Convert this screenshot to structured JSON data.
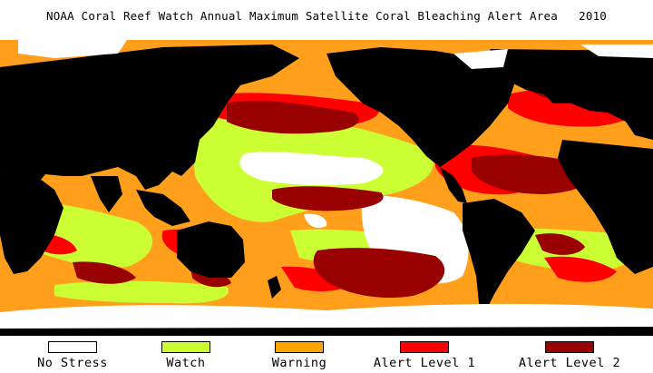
{
  "title": "NOAA Coral Reef Watch Annual Maximum Satellite Coral Bleaching Alert Area   2010",
  "legend": [
    {
      "label": "No Stress",
      "color": "#ffffff"
    },
    {
      "label": "Watch",
      "color": "#ccff33"
    },
    {
      "label": "Warning",
      "color": "#ffa500"
    },
    {
      "label": "Alert Level 1",
      "color": "#ff0000"
    },
    {
      "label": "Alert Level 2",
      "color": "#990000"
    }
  ],
  "colors": {
    "land": "#000000",
    "ice": "#ffffff",
    "ocean_base": "#ff9f1c"
  }
}
